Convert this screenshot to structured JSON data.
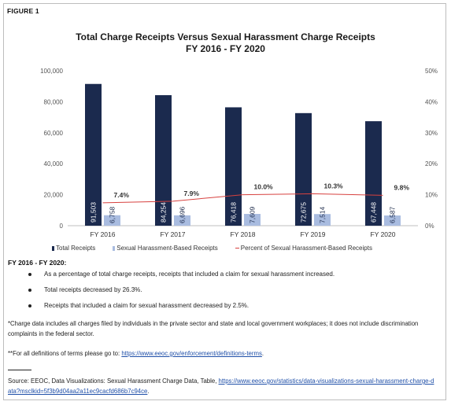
{
  "figure_label": "FIGURE 1",
  "colors": {
    "total_bar": "#1b2a4e",
    "sh_bar": "#a9bce0",
    "pct_line": "#d7413f",
    "grid": "#d9d9d9"
  },
  "chart_data": {
    "type": "bar",
    "title": "Total Charge Receipts Versus Sexual Harassment Charge Receipts",
    "subtitle": "FY 2016 - FY 2020",
    "categories": [
      "FY 2016",
      "FY 2017",
      "FY 2018",
      "FY 2019",
      "FY 2020"
    ],
    "series": [
      {
        "name": "Total Receipts",
        "values": [
          91503,
          84254,
          76418,
          72675,
          67448
        ],
        "labels": [
          "91,503",
          "84,254",
          "76,418",
          "72,675",
          "67,448"
        ]
      },
      {
        "name": "Sexual Harassment-Based Receipts",
        "values": [
          6758,
          6696,
          7609,
          7514,
          6587
        ],
        "labels": [
          "6,758",
          "6,696",
          "7,609",
          "7,514",
          "6,587"
        ]
      },
      {
        "name": "Percent of Sexual Harassment-Based Receipts",
        "axis": "right",
        "values": [
          7.4,
          7.9,
          10.0,
          10.3,
          9.8
        ],
        "labels": [
          "7.4%",
          "7.9%",
          "10.0%",
          "10.3%",
          "9.8%"
        ]
      }
    ],
    "ylim": [
      0,
      100000
    ],
    "y2lim": [
      0,
      50
    ],
    "y_ticks": [
      "0",
      "20,000",
      "40,000",
      "60,000",
      "80,000",
      "100,000"
    ],
    "y2_ticks": [
      "0%",
      "10%",
      "20%",
      "30%",
      "40%",
      "50%"
    ],
    "legend_position": "bottom",
    "grid": false
  },
  "summary": {
    "title": "FY 2016 - FY 2020:",
    "bullets": [
      "As a percentage of total charge receipts, receipts that included a claim for sexual harassment increased.",
      "Total receipts decreased by 26.3%.",
      "Receipts that included a claim for sexual harassment decreased by 2.5%."
    ]
  },
  "notes": {
    "charge_data": "*Charge data includes all charges filed by individuals in the private sector and state and local government workplaces; it does not include discrimination complaints in the federal sector.",
    "definitions_prefix": "**For all definitions of terms please go to: ",
    "definitions_link": "https://www.eeoc.gov/enforcement/definitions-terms",
    "definitions_suffix": ".",
    "source_prefix": "Source: EEOC, Data Visualizations: Sexual Harassment Charge Data, Table, ",
    "source_link": "https://www.eeoc.gov/statistics/data-visualizations-sexual-harassment-charge-data?msclkid=5f3b9d04aa2a11ec9cacfd686b7c94ce",
    "source_suffix": "."
  }
}
